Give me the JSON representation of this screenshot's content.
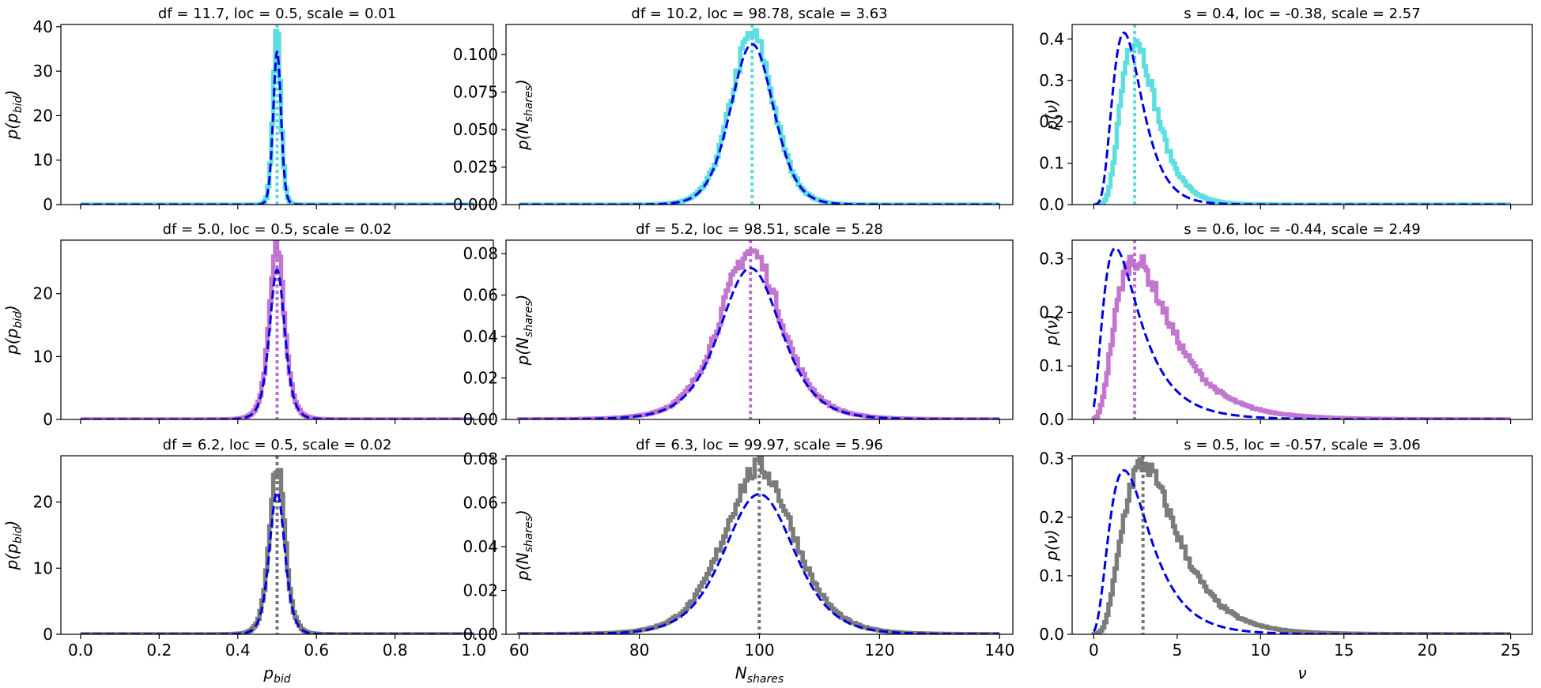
{
  "figure": {
    "colors": {
      "fit_line": "#0000e6",
      "row_colors": [
        "#55dcdc",
        "#bf6fcc",
        "#757575"
      ]
    }
  },
  "chart_data": [
    {
      "type": "histogram",
      "row": 0,
      "col": 0,
      "variable": "p_bid",
      "title": "df = 11.7, loc = 0.5, scale = 0.01",
      "ylabel_main": "p(p",
      "ylabel_sub": "bid",
      "ylabel_close": ")",
      "xlabel_main": "",
      "xlabel_sub": "",
      "dist": "t",
      "df": 11.7,
      "loc": 0.5,
      "scale": 0.01,
      "peak": 34.5,
      "hist_peak": 38.5,
      "vline": 0.5,
      "xlim": [
        -0.05,
        1.05
      ],
      "ylim": [
        0,
        40.5
      ],
      "xticks": [
        0.0,
        0.2,
        0.4,
        0.6,
        0.8,
        1.0
      ],
      "xtick_labels": [
        "",
        "",
        "",
        "",
        "",
        ""
      ],
      "yticks": [
        0,
        10,
        20,
        30,
        40
      ],
      "ytick_labels": [
        "0",
        "10",
        "20",
        "30",
        "40"
      ],
      "fit_range": [
        0.0,
        1.0
      ]
    },
    {
      "type": "histogram",
      "row": 0,
      "col": 1,
      "variable": "N_shares",
      "title": "df = 10.2, loc = 98.78, scale = 3.63",
      "ylabel_main": "p(N",
      "ylabel_sub": "shares",
      "ylabel_close": ")",
      "xlabel_main": "",
      "xlabel_sub": "",
      "dist": "t",
      "df": 10.2,
      "loc": 98.78,
      "scale": 3.63,
      "peak": 0.107,
      "hist_peak": 0.113,
      "vline": 98.78,
      "xlim": [
        57.8,
        142.2
      ],
      "ylim": [
        0,
        0.12
      ],
      "xticks": [
        60,
        80,
        100,
        120,
        140
      ],
      "xtick_labels": [
        "",
        "",
        "",
        "",
        ""
      ],
      "yticks": [
        0.0,
        0.025,
        0.05,
        0.075,
        0.1
      ],
      "ytick_labels": [
        "0.000",
        "0.025",
        "0.050",
        "0.075",
        "0.100"
      ],
      "fit_range": [
        60,
        140
      ]
    },
    {
      "type": "histogram",
      "row": 0,
      "col": 2,
      "variable": "nu",
      "title": "s = 0.4, loc = -0.38, scale = 2.57",
      "ylabel_main": "p(ν)",
      "ylabel_sub": "",
      "ylabel_close": "",
      "xlabel_main": "",
      "xlabel_sub": "",
      "dist": "lognorm",
      "s": 0.4,
      "loc": -0.38,
      "scale": 2.57,
      "peak": 0.415,
      "hist_peak": 0.405,
      "vline": 2.45,
      "xlim": [
        -1.3,
        26.3
      ],
      "ylim": [
        0,
        0.435
      ],
      "xticks": [
        0,
        5,
        10,
        15,
        20,
        25
      ],
      "xtick_labels": [
        "",
        "",
        "",
        "",
        "",
        ""
      ],
      "yticks": [
        0.0,
        0.1,
        0.2,
        0.3,
        0.4
      ],
      "ytick_labels": [
        "0.0",
        "0.1",
        "0.2",
        "0.3",
        "0.4"
      ],
      "fit_range": [
        0,
        25
      ]
    },
    {
      "type": "histogram",
      "row": 1,
      "col": 0,
      "variable": "p_bid",
      "title": "df = 5.0, loc = 0.5, scale = 0.02",
      "ylabel_main": "p(p",
      "ylabel_sub": "bid",
      "ylabel_close": ")",
      "xlabel_main": "",
      "xlabel_sub": "",
      "dist": "t",
      "df": 5.0,
      "loc": 0.5,
      "scale": 0.02,
      "peak": 23.8,
      "hist_peak": 27.5,
      "vline": 0.5,
      "xlim": [
        -0.05,
        1.05
      ],
      "ylim": [
        0,
        28.5
      ],
      "xticks": [
        0.0,
        0.2,
        0.4,
        0.6,
        0.8,
        1.0
      ],
      "xtick_labels": [
        "",
        "",
        "",
        "",
        "",
        ""
      ],
      "yticks": [
        0,
        10,
        20
      ],
      "ytick_labels": [
        "0",
        "10",
        "20"
      ],
      "fit_range": [
        0.0,
        1.0
      ]
    },
    {
      "type": "histogram",
      "row": 1,
      "col": 1,
      "variable": "N_shares",
      "title": "df = 5.2, loc = 98.51, scale = 5.28",
      "ylabel_main": "p(N",
      "ylabel_sub": "shares",
      "ylabel_close": ")",
      "xlabel_main": "",
      "xlabel_sub": "",
      "dist": "t",
      "df": 5.2,
      "loc": 98.51,
      "scale": 5.28,
      "peak": 0.073,
      "hist_peak": 0.081,
      "vline": 98.51,
      "xlim": [
        57.8,
        142.2
      ],
      "ylim": [
        0,
        0.0865
      ],
      "xticks": [
        60,
        80,
        100,
        120,
        140
      ],
      "xtick_labels": [
        "",
        "",
        "",
        "",
        ""
      ],
      "yticks": [
        0.0,
        0.02,
        0.04,
        0.06,
        0.08
      ],
      "ytick_labels": [
        "0.00",
        "0.02",
        "0.04",
        "0.06",
        "0.08"
      ],
      "fit_range": [
        60,
        140
      ]
    },
    {
      "type": "histogram",
      "row": 1,
      "col": 2,
      "variable": "nu",
      "title": "s = 0.6, loc = -0.44, scale = 2.49",
      "ylabel_main": "p(ν)",
      "ylabel_sub": "",
      "ylabel_close": "",
      "xlabel_main": "",
      "xlabel_sub": "",
      "dist": "lognorm",
      "s": 0.6,
      "loc": -0.44,
      "scale": 2.49,
      "peak": 0.32,
      "hist_peak": 0.3,
      "vline": 2.45,
      "xlim": [
        -1.3,
        26.3
      ],
      "ylim": [
        0,
        0.335
      ],
      "xticks": [
        0,
        5,
        10,
        15,
        20,
        25
      ],
      "xtick_labels": [
        "",
        "",
        "",
        "",
        "",
        ""
      ],
      "yticks": [
        0.0,
        0.1,
        0.2,
        0.3
      ],
      "ytick_labels": [
        "0.0",
        "0.1",
        "0.2",
        "0.3"
      ],
      "fit_range": [
        0,
        25
      ]
    },
    {
      "type": "histogram",
      "row": 2,
      "col": 0,
      "variable": "p_bid",
      "title": "df = 6.2, loc = 0.5, scale = 0.02",
      "ylabel_main": "p(p",
      "ylabel_sub": "bid",
      "ylabel_close": ")",
      "xlabel_main": "p",
      "xlabel_sub": "bid",
      "dist": "t",
      "df": 6.2,
      "loc": 0.5,
      "scale": 0.02,
      "peak": 21.5,
      "hist_peak": 25.5,
      "vline": 0.5,
      "xlim": [
        -0.05,
        1.05
      ],
      "ylim": [
        0,
        27
      ],
      "xticks": [
        0.0,
        0.2,
        0.4,
        0.6,
        0.8,
        1.0
      ],
      "xtick_labels": [
        "0.0",
        "0.2",
        "0.4",
        "0.6",
        "0.8",
        "1.0"
      ],
      "yticks": [
        0,
        10,
        20
      ],
      "ytick_labels": [
        "0",
        "10",
        "20"
      ],
      "fit_range": [
        0.0,
        1.0
      ]
    },
    {
      "type": "histogram",
      "row": 2,
      "col": 1,
      "variable": "N_shares",
      "title": "df = 6.3, loc = 99.97, scale = 5.96",
      "ylabel_main": "p(N",
      "ylabel_sub": "shares",
      "ylabel_close": ")",
      "xlabel_main": "N",
      "xlabel_sub": "shares",
      "dist": "t",
      "df": 6.3,
      "loc": 99.97,
      "scale": 5.96,
      "peak": 0.064,
      "hist_peak": 0.076,
      "vline": 99.97,
      "xlim": [
        57.8,
        142.2
      ],
      "ylim": [
        0,
        0.0815
      ],
      "xticks": [
        60,
        80,
        100,
        120,
        140
      ],
      "xtick_labels": [
        "60",
        "80",
        "100",
        "120",
        "140"
      ],
      "yticks": [
        0.0,
        0.02,
        0.04,
        0.06,
        0.08
      ],
      "ytick_labels": [
        "0.00",
        "0.02",
        "0.04",
        "0.06",
        "0.08"
      ],
      "fit_range": [
        60,
        140
      ]
    },
    {
      "type": "histogram",
      "row": 2,
      "col": 2,
      "variable": "nu",
      "title": "s = 0.5, loc = -0.57, scale = 3.06",
      "ylabel_main": "p(ν)",
      "ylabel_sub": "",
      "ylabel_close": "",
      "xlabel_main": "ν",
      "xlabel_sub": "",
      "dist": "lognorm",
      "s": 0.5,
      "loc": -0.57,
      "scale": 3.06,
      "peak": 0.28,
      "hist_peak": 0.29,
      "vline": 2.95,
      "xlim": [
        -1.3,
        26.3
      ],
      "ylim": [
        0,
        0.305
      ],
      "xticks": [
        0,
        5,
        10,
        15,
        20,
        25
      ],
      "xtick_labels": [
        "0",
        "5",
        "10",
        "15",
        "20",
        "25"
      ],
      "yticks": [
        0.0,
        0.1,
        0.2,
        0.3
      ],
      "ytick_labels": [
        "0.0",
        "0.1",
        "0.2",
        "0.3"
      ],
      "fit_range": [
        0,
        25
      ]
    }
  ]
}
